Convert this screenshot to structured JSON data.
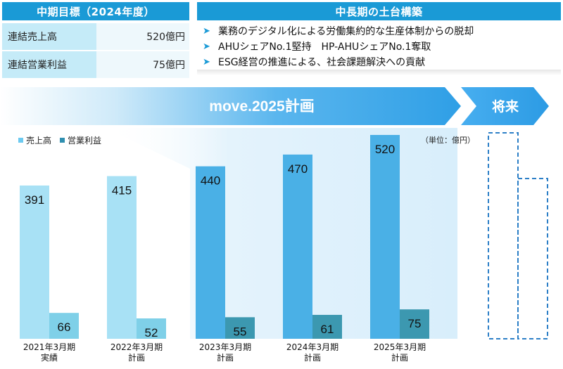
{
  "target": {
    "title": "中期目標（2024年度）",
    "rows": [
      {
        "label": "連結売上高",
        "value": "520億円"
      },
      {
        "label": "連結営業利益",
        "value": "75億円"
      }
    ]
  },
  "foundation": {
    "title": "中長期の土台構築",
    "items": [
      "業務のデジタル化による労働集約的な生産体制からの脱却",
      "AHUシェアNo.1堅持　HP-AHUシェアNo.1奪取",
      "ESG経営の推進による、社会課題解決への貢献"
    ]
  },
  "banner": {
    "plan_label": "move.2025計画",
    "future_label": "将来"
  },
  "legend": {
    "sales": "売上高",
    "profit": "営業利益"
  },
  "unit_label": "（単位：億円）",
  "colors": {
    "accent": "#1a9ad6",
    "sales_light": "#a8e1f5",
    "profit_light": "#7fd0e8",
    "sales_dark": "#4ab0e6",
    "profit_dark": "#3c98b0"
  },
  "chart_data": {
    "type": "bar",
    "categories": [
      [
        "2021年3月期",
        "実績"
      ],
      [
        "2022年3月期",
        "計画"
      ],
      [
        "2023年3月期",
        "計画"
      ],
      [
        "2024年3月期",
        "計画"
      ],
      [
        "2025年3月期",
        "計画"
      ]
    ],
    "series": [
      {
        "name": "売上高",
        "values": [
          391,
          415,
          440,
          470,
          520
        ]
      },
      {
        "name": "営業利益",
        "values": [
          66,
          52,
          55,
          61,
          75
        ]
      }
    ],
    "ylim": [
      0,
      620
    ]
  }
}
